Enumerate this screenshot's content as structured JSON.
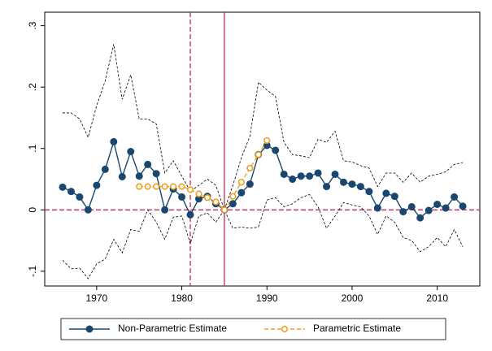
{
  "chart_data": {
    "type": "line",
    "x": [
      1966,
      1967,
      1968,
      1969,
      1970,
      1971,
      1972,
      1973,
      1974,
      1975,
      1976,
      1977,
      1978,
      1979,
      1980,
      1981,
      1982,
      1983,
      1984,
      1985,
      1986,
      1987,
      1988,
      1989,
      1990,
      1991,
      1992,
      1993,
      1994,
      1995,
      1996,
      1997,
      1998,
      1999,
      2000,
      2001,
      2002,
      2003,
      2004,
      2005,
      2006,
      2007,
      2008,
      2009,
      2010,
      2011,
      2012,
      2013
    ],
    "series": [
      {
        "name": "Non-Parametric Estimate",
        "color": "#1a476f",
        "marker": "solid",
        "values": [
          0.037,
          0.03,
          0.021,
          0,
          0.04,
          0.066,
          0.111,
          0.054,
          0.095,
          0.055,
          0.074,
          0.059,
          0,
          0.034,
          0.021,
          -0.008,
          0.018,
          0.022,
          0.01,
          0,
          0.01,
          0.028,
          0.042,
          0.09,
          0.105,
          0.097,
          0.058,
          0.05,
          0.055,
          0.055,
          0.06,
          0.038,
          0.058,
          0.045,
          0.042,
          0.038,
          0.03,
          0.003,
          0.027,
          0.022,
          -0.003,
          0.005,
          -0.013,
          -0.001,
          0.009,
          0.003,
          0.021,
          0.006
        ]
      },
      {
        "name": "Parametric Estimate",
        "color": "#f0a020",
        "marker": "hollow",
        "values": [
          null,
          null,
          null,
          null,
          null,
          null,
          null,
          null,
          null,
          0.038,
          0.038,
          0.038,
          0.038,
          0.038,
          0.038,
          0.033,
          0.026,
          0.02,
          0.013,
          0,
          0.022,
          0.045,
          0.068,
          0.09,
          0.113,
          null,
          null,
          null,
          null,
          null,
          null,
          null,
          null,
          null,
          null,
          null,
          null,
          null,
          null,
          null,
          null,
          null,
          null,
          null,
          null,
          null,
          null,
          null
        ]
      }
    ],
    "band": {
      "color": "#000000",
      "upper": [
        0.158,
        0.158,
        0.148,
        0.118,
        0.17,
        0.21,
        0.27,
        0.18,
        0.22,
        0.148,
        0.148,
        0.14,
        0.06,
        0.08,
        0.055,
        0.03,
        0.04,
        0.05,
        0.04,
        0,
        0.04,
        0.085,
        0.12,
        0.208,
        0.195,
        0.185,
        0.11,
        0.09,
        0.088,
        0.085,
        0.115,
        0.11,
        0.128,
        0.08,
        0.078,
        0.072,
        0.068,
        0.038,
        0.06,
        0.06,
        0.045,
        0.06,
        0.045,
        0.055,
        0.058,
        0.062,
        0.074,
        0.077
      ],
      "lower": [
        -0.082,
        -0.096,
        -0.095,
        -0.112,
        -0.088,
        -0.08,
        -0.048,
        -0.07,
        -0.032,
        -0.035,
        0,
        -0.02,
        -0.048,
        -0.012,
        -0.01,
        -0.055,
        -0.01,
        -0.005,
        -0.02,
        0,
        -0.03,
        -0.028,
        -0.03,
        -0.028,
        0.016,
        0.02,
        0.005,
        0.01,
        0.02,
        0.025,
        0.005,
        -0.03,
        -0.01,
        0.012,
        0.008,
        0.005,
        -0.01,
        -0.04,
        -0.01,
        -0.02,
        -0.045,
        -0.05,
        -0.068,
        -0.06,
        -0.045,
        -0.06,
        -0.032,
        -0.06
      ]
    },
    "ref_lines": {
      "color": "#c8285a",
      "x": [
        {
          "value": 1981,
          "style": "dashed"
        },
        {
          "value": 1985,
          "style": "solid"
        }
      ],
      "y": [
        {
          "value": 0,
          "style": "dashed"
        }
      ]
    },
    "xlim": [
      1963.9,
      2015
    ],
    "ylim": [
      -0.124,
      0.322
    ],
    "xticks": [
      1970,
      1980,
      1990,
      2000,
      2010
    ],
    "yticks": [
      {
        "value": -0.1,
        "label": "-.1"
      },
      {
        "value": 0,
        "label": "0"
      },
      {
        "value": 0.1,
        "label": ".1"
      },
      {
        "value": 0.2,
        "label": ".2"
      },
      {
        "value": 0.3,
        "label": ".3"
      }
    ],
    "legend": "bottom"
  }
}
